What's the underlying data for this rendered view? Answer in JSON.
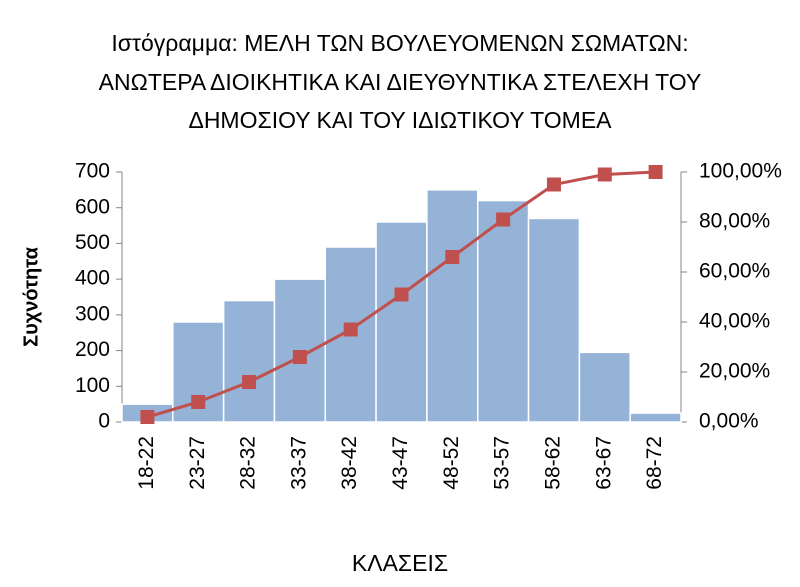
{
  "chart_data": {
    "type": "bar",
    "title": [
      "Ιστόγραμμα: ΜΕΛΗ ΤΩΝ ΒΟΥΛΕΥΟΜΕΝΩΝ ΣΩΜΑΤΩΝ:",
      "ΑΝΩΤΕΡΑ ΔΙΟΙΚΗΤΙΚΑ ΚΑΙ ΔΙΕΥΘΥΝΤΙΚΑ ΣΤΕΛΕΧΗ ΤΟΥ",
      "ΔΗΜΟΣΙΟΥ ΚΑΙ ΤΟΥ ΙΔΙΩΤΙΚΟΥ ΤΟΜΕΑ"
    ],
    "x_label": "ΚΛΑΣΕΙΣ",
    "y_label": "Συχνότητα",
    "categories": [
      "18-22",
      "23-27",
      "28-32",
      "33-37",
      "38-42",
      "43-47",
      "48-52",
      "53-57",
      "58-62",
      "63-67",
      "68-72"
    ],
    "series": [
      {
        "type": "bar",
        "color": "#95b3d7",
        "values": [
          50,
          280,
          340,
          400,
          490,
          560,
          650,
          620,
          570,
          195,
          25
        ]
      },
      {
        "type": "line",
        "color": "#c0504d",
        "axis": "y2",
        "values": [
          2,
          8,
          16,
          26,
          37,
          51,
          66,
          81,
          95,
          99,
          100
        ]
      }
    ],
    "ylim": [
      0,
      700
    ],
    "yticks": [
      0,
      100,
      200,
      300,
      400,
      500,
      600,
      700
    ],
    "y2lim": [
      0,
      100
    ],
    "y2ticks": [
      {
        "value": 0,
        "label": "0,00%"
      },
      {
        "value": 20,
        "label": "20,00%"
      },
      {
        "value": 40,
        "label": "40,00%"
      },
      {
        "value": 60,
        "label": "60,00%"
      },
      {
        "value": 80,
        "label": "80,00%"
      },
      {
        "value": 100,
        "label": "100,00%"
      }
    ]
  }
}
